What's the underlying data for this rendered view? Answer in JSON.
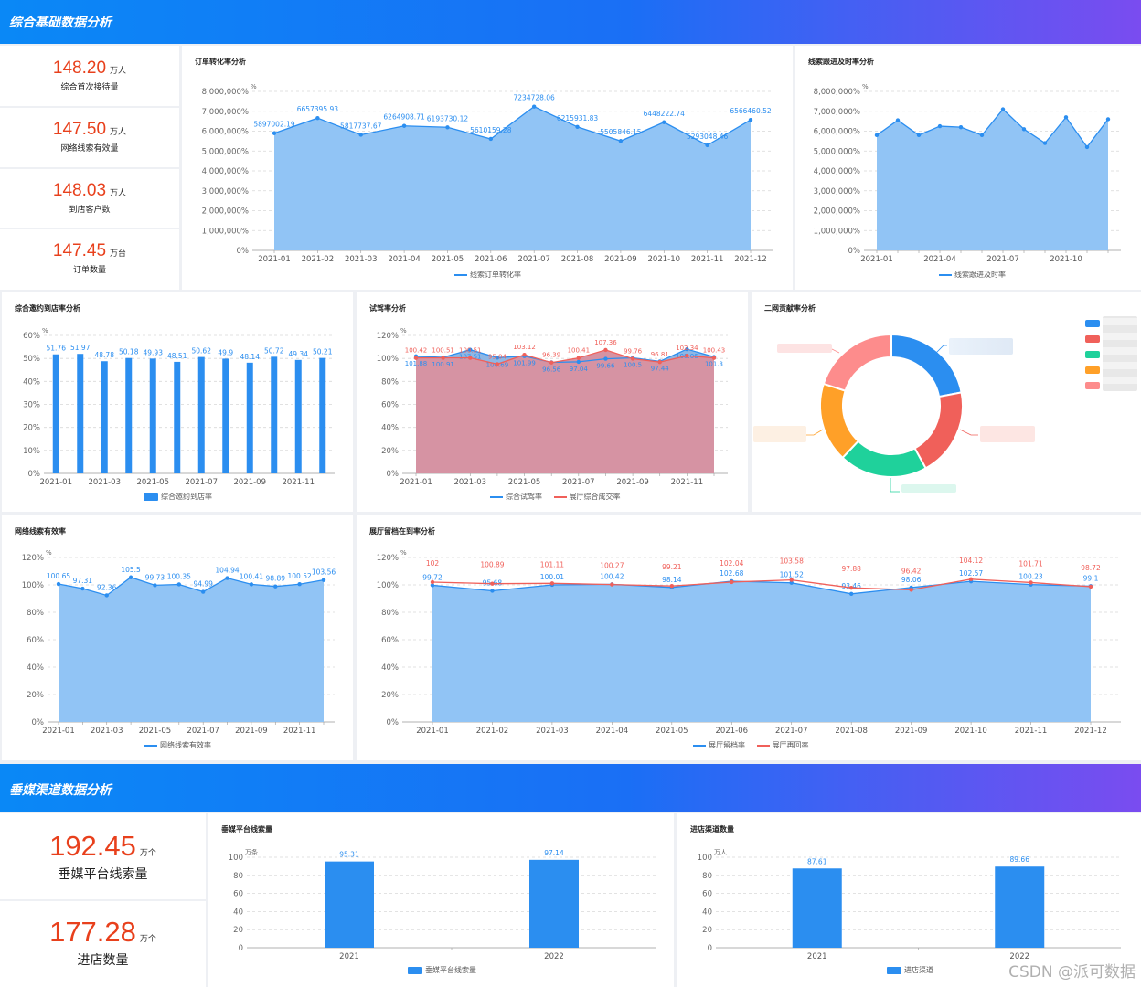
{
  "sections": [
    {
      "title": "综合基础数据分析"
    },
    {
      "title": "垂媒渠道数据分析"
    }
  ],
  "kpis_top": [
    {
      "value": "148.20",
      "unit": "万人",
      "label": "综合首次接待量"
    },
    {
      "value": "147.50",
      "unit": "万人",
      "label": "网络线索有效量"
    },
    {
      "value": "148.03",
      "unit": "万人",
      "label": "到店客户数"
    },
    {
      "value": "147.45",
      "unit": "万台",
      "label": "订单数量"
    }
  ],
  "kpis_bottom": [
    {
      "value": "192.45",
      "unit": "万个",
      "label": "垂媒平台线索量"
    },
    {
      "value": "177.28",
      "unit": "万个",
      "label": "进店数量"
    }
  ],
  "colors": {
    "blue": "#2b8ef0",
    "red": "#f0605a",
    "blue_fill": "#91c4f5",
    "pink_fill": "#d693a3",
    "green": "#1fd19b",
    "orange": "#ffa028",
    "salmon": "#fd8c8c"
  },
  "months12": [
    "2021-01",
    "2021-02",
    "2021-03",
    "2021-04",
    "2021-05",
    "2021-06",
    "2021-07",
    "2021-08",
    "2021-09",
    "2021-10",
    "2021-11",
    "2021-12"
  ],
  "charts": {
    "order": {
      "title": "订单转化率分析",
      "unit": "%",
      "yticks": [
        "0%",
        "1,000,000%",
        "2,000,000%",
        "3,000,000%",
        "4,000,000%",
        "5,000,000%",
        "6,000,000%",
        "7,000,000%",
        "8,000,000%"
      ],
      "legend": "线索订单转化率"
    },
    "lead": {
      "title": "线索跟进及时率分析",
      "unit": "%",
      "xlabels": [
        "2021-01",
        "2021-04",
        "2021-07",
        "2021-10"
      ],
      "legend": "线索跟进及时率"
    },
    "invite": {
      "title": "综合邀约到店率分析",
      "unit": "%",
      "yticks": [
        "0%",
        "10%",
        "20%",
        "30%",
        "40%",
        "50%",
        "60%"
      ],
      "xlabels": [
        "2021-01",
        "2021-03",
        "2021-05",
        "2021-07",
        "2021-09",
        "2021-11"
      ],
      "legend": "综合邀约到店率"
    },
    "test": {
      "title": "试驾率分析",
      "unit": "%",
      "yticks": [
        "0%",
        "20%",
        "40%",
        "60%",
        "80%",
        "100%",
        "120%"
      ],
      "xlabels": [
        "2021-01",
        "2021-03",
        "2021-05",
        "2021-07",
        "2021-09",
        "2021-11"
      ],
      "legend1": "综合试驾率",
      "legend2": "展厅综合成交率"
    },
    "donut": {
      "title": "二网贡献率分析"
    },
    "network": {
      "title": "网络线索有效率",
      "unit": "%",
      "yticks": [
        "0%",
        "20%",
        "40%",
        "60%",
        "80%",
        "100%",
        "120%"
      ],
      "xlabels": [
        "2021-01",
        "2021-03",
        "2021-05",
        "2021-07",
        "2021-09",
        "2021-11"
      ],
      "legend": "网络线索有效率"
    },
    "showroom": {
      "title": "展厅留档在到率分析",
      "unit": "%",
      "yticks": [
        "0%",
        "20%",
        "40%",
        "60%",
        "80%",
        "100%",
        "120%"
      ],
      "legend1": "展厅留档率",
      "legend2": "展厅再回率"
    },
    "platform": {
      "title": "垂媒平台线索量",
      "unit": "万条",
      "yticks": [
        "0",
        "20",
        "40",
        "60",
        "80",
        "100"
      ],
      "legend": "垂媒平台线索量"
    },
    "store": {
      "title": "进店渠道数量",
      "unit": "万人",
      "yticks": [
        "0",
        "20",
        "40",
        "60",
        "80",
        "100"
      ],
      "legend": "进店渠道"
    }
  },
  "chart_data": [
    {
      "type": "area",
      "title": "订单转化率分析",
      "categories": [
        "2021-01",
        "2021-02",
        "2021-03",
        "2021-04",
        "2021-05",
        "2021-06",
        "2021-07",
        "2021-08",
        "2021-09",
        "2021-10",
        "2021-11",
        "2021-12"
      ],
      "series": [
        {
          "name": "线索订单转化率",
          "values": [
            5897002.19,
            6657395.93,
            5817737.67,
            6264908.71,
            6193730.12,
            5610159.28,
            7234728.06,
            6215931.83,
            5505846.15,
            6448222.74,
            5293048.46,
            6566460.52
          ]
        }
      ],
      "ylim": [
        0,
        8000000
      ],
      "ylabel": "%"
    },
    {
      "type": "area",
      "title": "线索跟进及时率分析",
      "categories": [
        "2021-01",
        "2021-02",
        "2021-03",
        "2021-04",
        "2021-05",
        "2021-06",
        "2021-07",
        "2021-08",
        "2021-09",
        "2021-10",
        "2021-11",
        "2021-12"
      ],
      "series": [
        {
          "name": "线索跟进及时率",
          "values": [
            5800000,
            6550000,
            5800000,
            6250000,
            6200000,
            5800000,
            7100000,
            6100000,
            5400000,
            6700000,
            5200000,
            6600000
          ]
        }
      ],
      "ylim": [
        0,
        8000000
      ],
      "ylabel": "%"
    },
    {
      "type": "bar",
      "title": "综合邀约到店率分析",
      "categories": [
        "2021-01",
        "2021-02",
        "2021-03",
        "2021-04",
        "2021-05",
        "2021-06",
        "2021-07",
        "2021-08",
        "2021-09",
        "2021-10",
        "2021-11",
        "2021-12"
      ],
      "series": [
        {
          "name": "综合邀约到店率",
          "values": [
            51.76,
            51.97,
            48.78,
            50.18,
            49.93,
            48.51,
            50.62,
            49.9,
            48.14,
            50.72,
            49.34,
            50.21
          ]
        }
      ],
      "ylim": [
        0,
        60
      ],
      "ylabel": "%"
    },
    {
      "type": "area",
      "title": "试驾率分析",
      "categories": [
        "2021-01",
        "2021-02",
        "2021-03",
        "2021-04",
        "2021-05",
        "2021-06",
        "2021-07",
        "2021-08",
        "2021-09",
        "2021-10",
        "2021-11",
        "2021-12"
      ],
      "series": [
        {
          "name": "综合试驾率",
          "values": [
            101.88,
            100.91,
            107.51,
            100.69,
            101.99,
            96.56,
            97.04,
            99.66,
            100.5,
            97.44,
            108.06,
            101.3
          ]
        },
        {
          "name": "展厅综合成交率",
          "values": [
            100.42,
            100.51,
            100.51,
            95.04,
            103.12,
            96.39,
            100.41,
            107.36,
            99.76,
            96.81,
            102.34,
            100.43
          ]
        }
      ],
      "ylim": [
        0,
        120
      ],
      "ylabel": "%"
    },
    {
      "type": "pie",
      "title": "二网贡献率分析",
      "categories": [
        "",
        "",
        "",
        "",
        ""
      ],
      "values": [
        22,
        20,
        20,
        18,
        20
      ]
    },
    {
      "type": "area",
      "title": "网络线索有效率",
      "categories": [
        "2021-01",
        "2021-02",
        "2021-03",
        "2021-04",
        "2021-05",
        "2021-06",
        "2021-07",
        "2021-08",
        "2021-09",
        "2021-10",
        "2021-11",
        "2021-12"
      ],
      "series": [
        {
          "name": "网络线索有效率",
          "values": [
            100.65,
            97.31,
            92.36,
            105.5,
            99.73,
            100.35,
            94.99,
            104.94,
            100.41,
            98.89,
            100.52,
            103.56
          ]
        }
      ],
      "ylim": [
        0,
        120
      ],
      "ylabel": "%"
    },
    {
      "type": "area",
      "title": "展厅留档在到率分析",
      "categories": [
        "2021-01",
        "2021-02",
        "2021-03",
        "2021-04",
        "2021-05",
        "2021-06",
        "2021-07",
        "2021-08",
        "2021-09",
        "2021-10",
        "2021-11",
        "2021-12"
      ],
      "series": [
        {
          "name": "展厅留档率",
          "values": [
            99.72,
            95.68,
            100.01,
            100.42,
            98.14,
            102.68,
            101.52,
            93.46,
            98.06,
            102.57,
            100.23,
            99.1
          ]
        },
        {
          "name": "展厅再回率",
          "values": [
            102,
            100.89,
            101.11,
            100.27,
            99.21,
            102.04,
            103.58,
            97.88,
            96.42,
            104.12,
            101.71,
            98.72
          ]
        }
      ],
      "ylim": [
        0,
        120
      ],
      "ylabel": "%"
    },
    {
      "type": "bar",
      "title": "垂媒平台线索量",
      "categories": [
        "2021",
        "2022"
      ],
      "series": [
        {
          "name": "垂媒平台线索量",
          "values": [
            95.31,
            97.14
          ]
        }
      ],
      "ylim": [
        0,
        100
      ],
      "ylabel": "万条"
    },
    {
      "type": "bar",
      "title": "进店渠道数量",
      "categories": [
        "2021",
        "2022"
      ],
      "series": [
        {
          "name": "进店渠道",
          "values": [
            87.61,
            89.66
          ]
        }
      ],
      "ylim": [
        0,
        100
      ],
      "ylabel": "万人"
    }
  ],
  "watermark": "CSDN @派可数据"
}
